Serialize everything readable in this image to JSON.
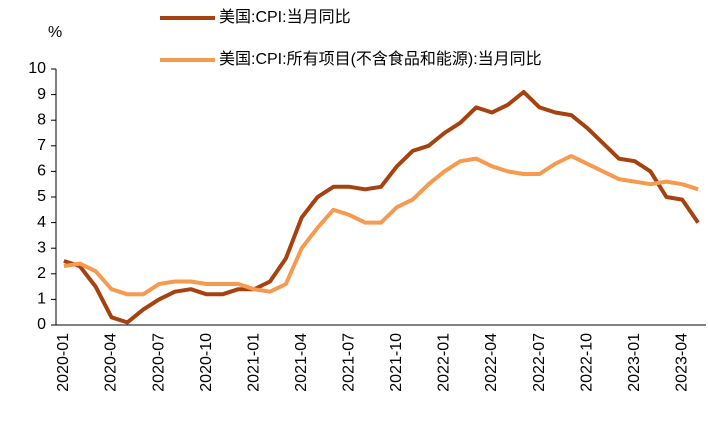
{
  "chart_data": {
    "type": "line",
    "ylabel": "%",
    "categories": [
      "2020-01",
      null,
      null,
      "2020-04",
      null,
      null,
      "2020-07",
      null,
      null,
      "2020-10",
      null,
      null,
      "2021-01",
      null,
      null,
      "2021-04",
      null,
      null,
      "2021-07",
      null,
      null,
      "2021-10",
      null,
      null,
      "2022-01",
      null,
      null,
      "2022-04",
      null,
      null,
      "2022-07",
      null,
      null,
      "2022-10",
      null,
      null,
      "2023-01",
      null,
      null,
      "2023-04",
      null
    ],
    "series": [
      {
        "name": "美国:CPI:当月同比",
        "color": "#a5420f",
        "values": [
          2.5,
          2.3,
          1.5,
          0.3,
          0.1,
          0.6,
          1.0,
          1.3,
          1.4,
          1.2,
          1.2,
          1.4,
          1.4,
          1.7,
          2.6,
          4.2,
          5.0,
          5.4,
          5.4,
          5.3,
          5.4,
          6.2,
          6.8,
          7.0,
          7.5,
          7.9,
          8.5,
          8.3,
          8.6,
          9.1,
          8.5,
          8.3,
          8.2,
          7.7,
          7.1,
          6.5,
          6.4,
          6.0,
          5.0,
          4.9,
          4.0
        ]
      },
      {
        "name": "美国:CPI:所有项目(不含食品和能源):当月同比",
        "color": "#f59a4e",
        "values": [
          2.3,
          2.4,
          2.1,
          1.4,
          1.2,
          1.2,
          1.6,
          1.7,
          1.7,
          1.6,
          1.6,
          1.6,
          1.4,
          1.3,
          1.6,
          3.0,
          3.8,
          4.5,
          4.3,
          4.0,
          4.0,
          4.6,
          4.9,
          5.5,
          6.0,
          6.4,
          6.5,
          6.2,
          6.0,
          5.9,
          5.9,
          6.3,
          6.6,
          6.3,
          6.0,
          5.7,
          5.6,
          5.5,
          5.6,
          5.5,
          5.3
        ]
      }
    ],
    "ylim": [
      0,
      10
    ],
    "yticks": [
      0,
      1,
      2,
      3,
      4,
      5,
      6,
      7,
      8,
      9,
      10
    ]
  }
}
